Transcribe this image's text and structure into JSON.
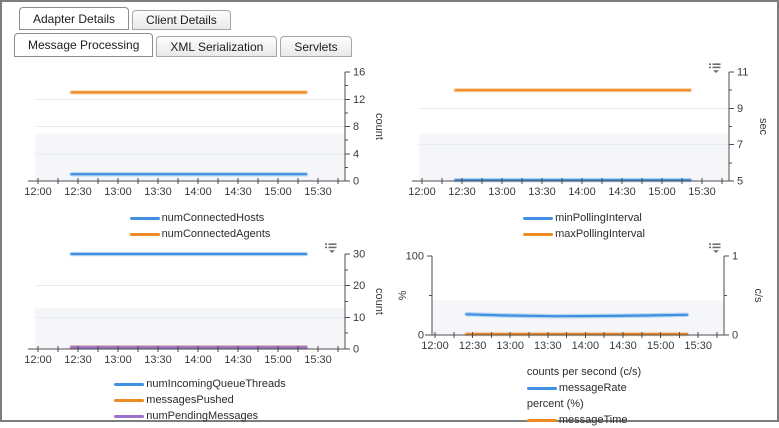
{
  "tabs_primary": [
    {
      "label": "Adapter Details",
      "active": true
    },
    {
      "label": "Client Details",
      "active": false
    }
  ],
  "tabs_secondary": [
    {
      "label": "Message Processing",
      "active": true
    },
    {
      "label": "XML Serialization",
      "active": false
    },
    {
      "label": "Servlets",
      "active": false
    }
  ],
  "colors": {
    "blue": "#3f90e0",
    "orange": "#ee8a23",
    "purple": "#9a72cc",
    "axis": "#4d4d4d",
    "grid": "#e9ecf0",
    "band": "#f4f6f9",
    "tick_text": "#3a3a3a",
    "icon_gray": "#6e6e6e"
  },
  "icons": {
    "chart_menu": "list-with-caret-down"
  },
  "time_axis": {
    "tick_labels": [
      "12:00",
      "12:30",
      "13:00",
      "13:30",
      "14:00",
      "14:30",
      "15:00",
      "15:30"
    ],
    "minor_tick_interval_minutes": 15
  },
  "chart_data": [
    {
      "type": "line",
      "ylabel": "count",
      "ylim": [
        0,
        16
      ],
      "y_major": [
        0,
        4,
        8,
        12,
        16
      ],
      "y_minor": [
        2,
        6,
        10,
        14
      ],
      "menu_icon": false,
      "data_span": [
        12.42,
        15.35
      ],
      "series": [
        {
          "name": "numConnectedHosts",
          "color_key": "blue",
          "value": 1
        },
        {
          "name": "numConnectedAgents",
          "color_key": "orange",
          "value": 13
        }
      ]
    },
    {
      "type": "line",
      "ylabel": "sec",
      "ylim": [
        5,
        11
      ],
      "y_major": [
        5,
        7,
        9,
        11
      ],
      "y_minor": [
        6,
        8,
        10
      ],
      "menu_icon": true,
      "data_span": [
        12.42,
        15.35
      ],
      "series": [
        {
          "name": "minPollingInterval",
          "color_key": "blue",
          "value": 5.05
        },
        {
          "name": "maxPollingInterval",
          "color_key": "orange",
          "value": 10
        }
      ]
    },
    {
      "type": "line",
      "ylabel": "count",
      "ylim": [
        0,
        30
      ],
      "y_major": [
        0,
        10,
        20,
        30
      ],
      "y_minor": [
        5,
        15,
        25
      ],
      "menu_icon": true,
      "data_span": [
        12.42,
        15.35
      ],
      "series": [
        {
          "name": "numIncomingQueueThreads",
          "color_key": "blue",
          "value": 30
        },
        {
          "name": "messagesPushed",
          "color_key": "orange",
          "value": 0.5
        },
        {
          "name": "numPendingMessages",
          "color_key": "purple",
          "value": 0.5
        }
      ]
    },
    {
      "type": "line",
      "dual_axis": true,
      "left_axis": {
        "label": "%",
        "ylim": [
          0,
          100
        ],
        "major": [
          0,
          100
        ],
        "minor": [
          50
        ]
      },
      "right_axis": {
        "label": "c/s",
        "ylim": [
          0,
          1
        ],
        "major": [
          0,
          1
        ],
        "minor": [
          0.5
        ]
      },
      "menu_icon": true,
      "data_span": [
        12.42,
        15.35
      ],
      "series": [
        {
          "name": "messageRate",
          "color_key": "blue",
          "axis": "right",
          "points": [
            [
              12.42,
              0.262
            ],
            [
              12.9,
              0.248
            ],
            [
              13.6,
              0.238
            ],
            [
              14.2,
              0.24
            ],
            [
              14.8,
              0.247
            ],
            [
              15.35,
              0.256
            ]
          ]
        },
        {
          "name": "messageTime",
          "color_key": "orange",
          "axis": "left",
          "value": 1.2
        }
      ],
      "legend_rows": [
        {
          "header": "counts per second (c/s)"
        },
        {
          "series": "messageRate"
        },
        {
          "header": "percent (%)"
        },
        {
          "series": "messageTime"
        }
      ]
    }
  ]
}
